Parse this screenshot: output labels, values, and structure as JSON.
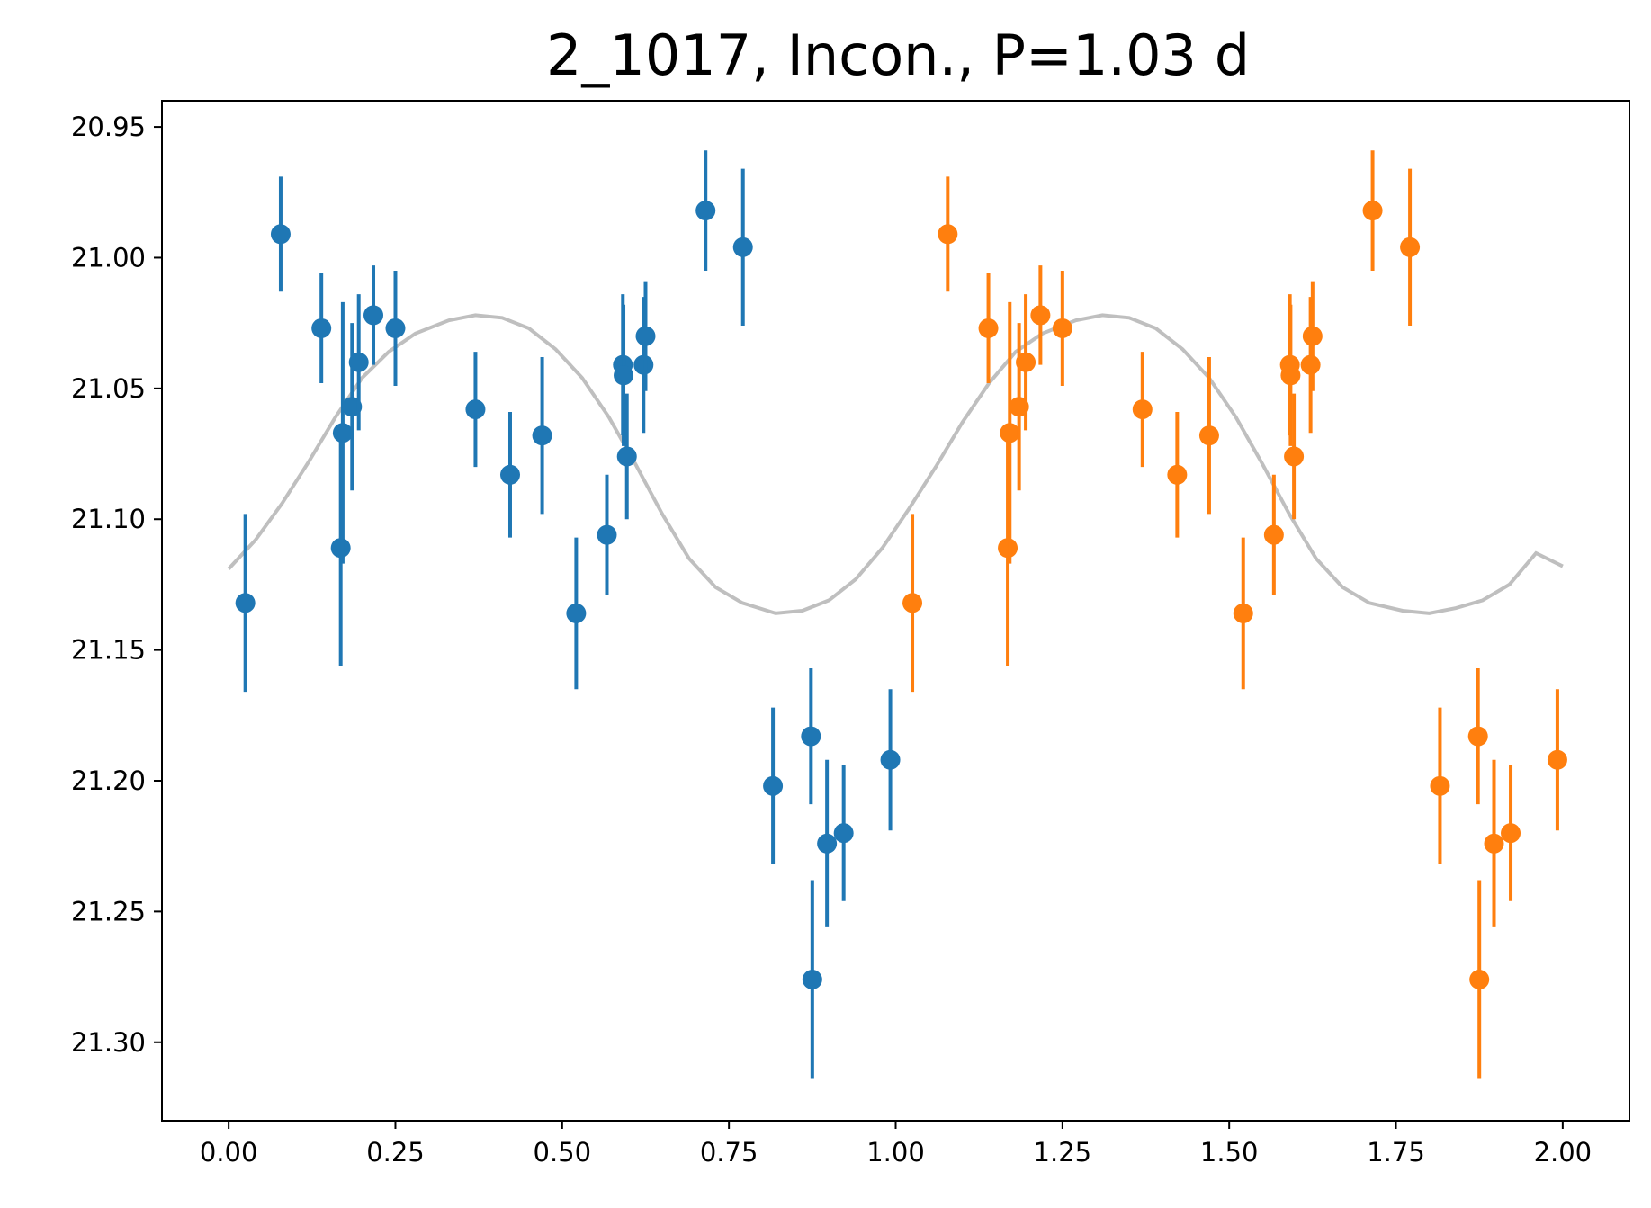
{
  "chart_data": {
    "type": "scatter",
    "title": "2_1017, Incon., P=1.03 d",
    "xlabel": "",
    "ylabel": "",
    "xlim": [
      -0.1,
      2.1
    ],
    "ylim": [
      21.33,
      20.94
    ],
    "y_inverted": true,
    "grid": false,
    "x_ticks": [
      {
        "value": 0.0,
        "label": "0.00"
      },
      {
        "value": 0.25,
        "label": "0.25"
      },
      {
        "value": 0.5,
        "label": "0.50"
      },
      {
        "value": 0.75,
        "label": "0.75"
      },
      {
        "value": 1.0,
        "label": "1.00"
      },
      {
        "value": 1.25,
        "label": "1.25"
      },
      {
        "value": 1.5,
        "label": "1.50"
      },
      {
        "value": 1.75,
        "label": "1.75"
      },
      {
        "value": 2.0,
        "label": "2.00"
      }
    ],
    "y_ticks": [
      {
        "value": 20.95,
        "label": "20.95"
      },
      {
        "value": 21.0,
        "label": "21.00"
      },
      {
        "value": 21.05,
        "label": "21.05"
      },
      {
        "value": 21.1,
        "label": "21.10"
      },
      {
        "value": 21.15,
        "label": "21.15"
      },
      {
        "value": 21.2,
        "label": "21.20"
      },
      {
        "value": 21.25,
        "label": "21.25"
      },
      {
        "value": 21.3,
        "label": "21.30"
      }
    ],
    "colors": {
      "series1": "#1f77b4",
      "series2": "#ff7f0e",
      "model": "#bfbfbf"
    },
    "series": [
      {
        "points": [
          {
            "x": 0.025,
            "y": 21.132,
            "err": 0.034
          },
          {
            "x": 0.078,
            "y": 20.991,
            "err": 0.022
          },
          {
            "x": 0.139,
            "y": 21.027,
            "err": 0.021
          },
          {
            "x": 0.168,
            "y": 21.111,
            "err": 0.045
          },
          {
            "x": 0.171,
            "y": 21.067,
            "err": 0.05
          },
          {
            "x": 0.185,
            "y": 21.057,
            "err": 0.032
          },
          {
            "x": 0.195,
            "y": 21.04,
            "err": 0.026
          },
          {
            "x": 0.217,
            "y": 21.022,
            "err": 0.019
          },
          {
            "x": 0.25,
            "y": 21.027,
            "err": 0.022
          },
          {
            "x": 0.37,
            "y": 21.058,
            "err": 0.022
          },
          {
            "x": 0.422,
            "y": 21.083,
            "err": 0.024
          },
          {
            "x": 0.47,
            "y": 21.068,
            "err": 0.03
          },
          {
            "x": 0.521,
            "y": 21.136,
            "err": 0.029
          },
          {
            "x": 0.567,
            "y": 21.106,
            "err": 0.023
          },
          {
            "x": 0.591,
            "y": 21.041,
            "err": 0.027
          },
          {
            "x": 0.592,
            "y": 21.045,
            "err": 0.027
          },
          {
            "x": 0.597,
            "y": 21.076,
            "err": 0.024
          },
          {
            "x": 0.622,
            "y": 21.041,
            "err": 0.026
          },
          {
            "x": 0.625,
            "y": 21.03,
            "err": 0.021
          },
          {
            "x": 0.715,
            "y": 20.982,
            "err": 0.023
          },
          {
            "x": 0.771,
            "y": 20.996,
            "err": 0.03
          },
          {
            "x": 0.816,
            "y": 21.202,
            "err": 0.03
          },
          {
            "x": 0.873,
            "y": 21.183,
            "err": 0.026
          },
          {
            "x": 0.875,
            "y": 21.276,
            "err": 0.038
          },
          {
            "x": 0.897,
            "y": 21.224,
            "err": 0.032
          },
          {
            "x": 0.922,
            "y": 21.22,
            "err": 0.026
          },
          {
            "x": 0.992,
            "y": 21.192,
            "err": 0.027
          }
        ]
      },
      {
        "points": [
          {
            "x": 1.025,
            "y": 21.132,
            "err": 0.034
          },
          {
            "x": 1.078,
            "y": 20.991,
            "err": 0.022
          },
          {
            "x": 1.139,
            "y": 21.027,
            "err": 0.021
          },
          {
            "x": 1.168,
            "y": 21.111,
            "err": 0.045
          },
          {
            "x": 1.171,
            "y": 21.067,
            "err": 0.05
          },
          {
            "x": 1.185,
            "y": 21.057,
            "err": 0.032
          },
          {
            "x": 1.195,
            "y": 21.04,
            "err": 0.026
          },
          {
            "x": 1.217,
            "y": 21.022,
            "err": 0.019
          },
          {
            "x": 1.25,
            "y": 21.027,
            "err": 0.022
          },
          {
            "x": 1.37,
            "y": 21.058,
            "err": 0.022
          },
          {
            "x": 1.422,
            "y": 21.083,
            "err": 0.024
          },
          {
            "x": 1.47,
            "y": 21.068,
            "err": 0.03
          },
          {
            "x": 1.521,
            "y": 21.136,
            "err": 0.029
          },
          {
            "x": 1.567,
            "y": 21.106,
            "err": 0.023
          },
          {
            "x": 1.591,
            "y": 21.041,
            "err": 0.027
          },
          {
            "x": 1.592,
            "y": 21.045,
            "err": 0.027
          },
          {
            "x": 1.597,
            "y": 21.076,
            "err": 0.024
          },
          {
            "x": 1.622,
            "y": 21.041,
            "err": 0.026
          },
          {
            "x": 1.625,
            "y": 21.03,
            "err": 0.021
          },
          {
            "x": 1.715,
            "y": 20.982,
            "err": 0.023
          },
          {
            "x": 1.771,
            "y": 20.996,
            "err": 0.03
          },
          {
            "x": 1.816,
            "y": 21.202,
            "err": 0.03
          },
          {
            "x": 1.873,
            "y": 21.183,
            "err": 0.026
          },
          {
            "x": 1.875,
            "y": 21.276,
            "err": 0.038
          },
          {
            "x": 1.897,
            "y": 21.224,
            "err": 0.032
          },
          {
            "x": 1.922,
            "y": 21.22,
            "err": 0.026
          },
          {
            "x": 1.992,
            "y": 21.192,
            "err": 0.027
          }
        ]
      }
    ],
    "model_curve": {
      "x": [
        0.0,
        0.04,
        0.08,
        0.12,
        0.16,
        0.2,
        0.24,
        0.28,
        0.33,
        0.37,
        0.41,
        0.45,
        0.49,
        0.53,
        0.57,
        0.61,
        0.65,
        0.69,
        0.73,
        0.77,
        0.82,
        0.86,
        0.9,
        0.94,
        0.98,
        1.02,
        1.06,
        1.1,
        1.14,
        1.18,
        1.22,
        1.27,
        1.31,
        1.35,
        1.39,
        1.43,
        1.47,
        1.51,
        1.55,
        1.59,
        1.63,
        1.67,
        1.71,
        1.76,
        1.8,
        1.84,
        1.88,
        1.92,
        1.96,
        2.0
      ],
      "y": [
        21.119,
        21.108,
        21.094,
        21.078,
        21.061,
        21.046,
        21.036,
        21.029,
        21.024,
        21.022,
        21.023,
        21.027,
        21.035,
        21.046,
        21.061,
        21.079,
        21.098,
        21.115,
        21.126,
        21.132,
        21.136,
        21.135,
        21.131,
        21.123,
        21.111,
        21.096,
        21.08,
        21.063,
        21.048,
        21.036,
        21.029,
        21.024,
        21.022,
        21.023,
        21.027,
        21.035,
        21.046,
        21.061,
        21.079,
        21.098,
        21.115,
        21.126,
        21.132,
        21.135,
        21.136,
        21.134,
        21.131,
        21.125,
        21.113,
        21.118
      ]
    }
  }
}
